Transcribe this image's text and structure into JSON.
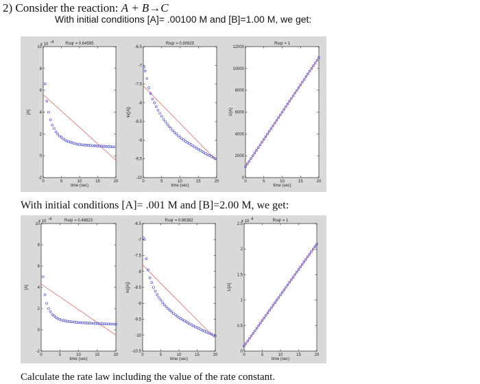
{
  "question": {
    "number": "2) Consider the reaction: ",
    "reaction": "A + B→C",
    "intro_1": "With initial conditions [A]= .00100 M and [B]=1.00 M, we get:",
    "intro_2": "With initial conditions [A]= .001 M and [B]=2.00 M, we get:",
    "closing": "Calculate the rate law including the value of the rate constant."
  },
  "colors": {
    "fit_line": "#e06a6a",
    "marker": "#3b3bd6",
    "panel_bg": "#d9d9d9",
    "plot_bg": "#ffffff"
  },
  "chart_data": [
    {
      "type": "scatter",
      "set": 1,
      "title": "Rsqr = 0.64595",
      "ylabel": "[A]",
      "xlabel": "time (sec)",
      "exponent": "x 10",
      "exponent_power": "-4",
      "xlim": [
        0,
        20
      ],
      "ylim": [
        -2,
        10
      ],
      "xticks": [
        0,
        5,
        10,
        15,
        20
      ],
      "yticks": [
        -2,
        0,
        2,
        4,
        6,
        8,
        10
      ],
      "xticklabels": [
        "0",
        "5",
        "10",
        "15",
        "20"
      ],
      "yticklabels": [
        "-2",
        "0",
        "2",
        "4",
        "6",
        "8",
        "10"
      ],
      "points": [
        [
          0.5,
          6.6
        ],
        [
          1,
          5.0
        ],
        [
          1.5,
          4.0
        ],
        [
          2,
          3.3
        ],
        [
          2.5,
          2.8
        ],
        [
          3,
          2.5
        ],
        [
          3.5,
          2.2
        ],
        [
          4,
          2.0
        ],
        [
          4.5,
          1.8
        ],
        [
          5,
          1.7
        ],
        [
          5.5,
          1.55
        ],
        [
          6,
          1.45
        ],
        [
          6.5,
          1.35
        ],
        [
          7,
          1.3
        ],
        [
          7.5,
          1.25
        ],
        [
          8,
          1.2
        ],
        [
          8.5,
          1.15
        ],
        [
          9,
          1.1
        ],
        [
          9.5,
          1.05
        ],
        [
          10,
          1.05
        ],
        [
          10.5,
          1.0
        ],
        [
          11,
          1.0
        ],
        [
          11.5,
          0.98
        ],
        [
          12,
          0.97
        ],
        [
          12.5,
          0.96
        ],
        [
          13,
          0.95
        ],
        [
          13.5,
          0.93
        ],
        [
          14,
          0.92
        ],
        [
          14.5,
          0.91
        ],
        [
          15,
          0.9
        ],
        [
          15.5,
          0.89
        ],
        [
          16,
          0.88
        ],
        [
          16.5,
          0.87
        ],
        [
          17,
          0.86
        ],
        [
          17.5,
          0.85
        ],
        [
          18,
          0.84
        ],
        [
          18.5,
          0.83
        ],
        [
          19,
          0.82
        ],
        [
          19.5,
          0.81
        ]
      ],
      "fit": [
        [
          0,
          5.6
        ],
        [
          20,
          -0.4
        ]
      ]
    },
    {
      "type": "scatter",
      "set": 1,
      "title": "Rsqr = 0.90925",
      "ylabel": "ln([A])",
      "xlabel": "time (sec)",
      "xlim": [
        0,
        20
      ],
      "ylim": [
        -10,
        -6.5
      ],
      "xticks": [
        0,
        5,
        10,
        15,
        20
      ],
      "yticks": [
        -10,
        -9.5,
        -9,
        -8.5,
        -8,
        -7.5,
        -7,
        -6.5
      ],
      "xticklabels": [
        "0",
        "5",
        "10",
        "15",
        "20"
      ],
      "yticklabels": [
        "-10",
        "-9.5",
        "-9",
        "-8.5",
        "-8",
        "-7.5",
        "-7",
        "-6.5"
      ],
      "points": [
        [
          0.2,
          -7.05
        ],
        [
          0.5,
          -7.15
        ],
        [
          1,
          -7.35
        ],
        [
          1.5,
          -7.6
        ],
        [
          2,
          -7.75
        ],
        [
          2.5,
          -7.9
        ],
        [
          3,
          -8.0
        ],
        [
          3.5,
          -8.1
        ],
        [
          4,
          -8.2
        ],
        [
          4.5,
          -8.28
        ],
        [
          5,
          -8.36
        ],
        [
          5.5,
          -8.44
        ],
        [
          6,
          -8.5
        ],
        [
          6.5,
          -8.57
        ],
        [
          7,
          -8.63
        ],
        [
          7.5,
          -8.68
        ],
        [
          8,
          -8.74
        ],
        [
          8.5,
          -8.79
        ],
        [
          9,
          -8.83
        ],
        [
          9.5,
          -8.88
        ],
        [
          10,
          -8.92
        ],
        [
          10.5,
          -8.96
        ],
        [
          11,
          -8.99
        ],
        [
          11.5,
          -9.03
        ],
        [
          12,
          -9.06
        ],
        [
          12.5,
          -9.09
        ],
        [
          13,
          -9.12
        ],
        [
          13.5,
          -9.15
        ],
        [
          14,
          -9.18
        ],
        [
          14.5,
          -9.21
        ],
        [
          15,
          -9.24
        ],
        [
          15.5,
          -9.27
        ],
        [
          16,
          -9.3
        ],
        [
          16.5,
          -9.33
        ],
        [
          17,
          -9.36
        ],
        [
          17.5,
          -9.39
        ],
        [
          18,
          -9.41
        ],
        [
          18.5,
          -9.43
        ],
        [
          19,
          -9.46
        ],
        [
          19.5,
          -9.49
        ]
      ],
      "fit": [
        [
          0,
          -7.55
        ],
        [
          20,
          -9.55
        ]
      ]
    },
    {
      "type": "scatter",
      "set": 1,
      "title": "Rsqr = 1",
      "ylabel": "1/[A]",
      "xlabel": "time (sec)",
      "xlim": [
        0,
        20
      ],
      "ylim": [
        0,
        12000
      ],
      "xticks": [
        0,
        5,
        10,
        15,
        20
      ],
      "yticks": [
        0,
        2000,
        4000,
        6000,
        8000,
        10000,
        12000
      ],
      "xticklabels": [
        "0",
        "5",
        "10",
        "15",
        "20"
      ],
      "yticklabels": [
        "0",
        "2000",
        "4000",
        "6000",
        "8000",
        "10000",
        "12000"
      ],
      "points": [
        [
          0,
          1000
        ],
        [
          0.5,
          1250
        ],
        [
          1,
          1500
        ],
        [
          1.5,
          1750
        ],
        [
          2,
          2000
        ],
        [
          2.5,
          2250
        ],
        [
          3,
          2500
        ],
        [
          3.5,
          2750
        ],
        [
          4,
          3000
        ],
        [
          4.5,
          3250
        ],
        [
          5,
          3500
        ],
        [
          5.5,
          3750
        ],
        [
          6,
          4000
        ],
        [
          6.5,
          4250
        ],
        [
          7,
          4500
        ],
        [
          7.5,
          4750
        ],
        [
          8,
          5000
        ],
        [
          8.5,
          5250
        ],
        [
          9,
          5500
        ],
        [
          9.5,
          5750
        ],
        [
          10,
          6000
        ],
        [
          10.5,
          6250
        ],
        [
          11,
          6500
        ],
        [
          11.5,
          6750
        ],
        [
          12,
          7000
        ],
        [
          12.5,
          7250
        ],
        [
          13,
          7500
        ],
        [
          13.5,
          7750
        ],
        [
          14,
          8000
        ],
        [
          14.5,
          8250
        ],
        [
          15,
          8500
        ],
        [
          15.5,
          8750
        ],
        [
          16,
          9000
        ],
        [
          16.5,
          9250
        ],
        [
          17,
          9500
        ],
        [
          17.5,
          9750
        ],
        [
          18,
          10000
        ],
        [
          18.5,
          10250
        ],
        [
          19,
          10500
        ],
        [
          19.5,
          10750
        ],
        [
          20,
          11000
        ]
      ],
      "fit": [
        [
          0,
          1000
        ],
        [
          20,
          11000
        ]
      ]
    },
    {
      "type": "scatter",
      "set": 2,
      "title": "Rsqr = 0.48823",
      "ylabel": "[A]",
      "xlabel": "time (sec)",
      "exponent": "x 10",
      "exponent_power": "-4",
      "xlim": [
        0,
        20
      ],
      "ylim": [
        -2,
        10
      ],
      "xticks": [
        0,
        5,
        10,
        15,
        20
      ],
      "yticks": [
        -2,
        0,
        2,
        4,
        6,
        8,
        10
      ],
      "xticklabels": [
        "0",
        "5",
        "10",
        "15",
        "20"
      ],
      "yticklabels": [
        "-2",
        "0",
        "2",
        "4",
        "6",
        "8",
        "10"
      ],
      "points": [
        [
          0.5,
          5.0
        ],
        [
          1,
          3.3
        ],
        [
          1.5,
          2.5
        ],
        [
          2,
          2.0
        ],
        [
          2.5,
          1.7
        ],
        [
          3,
          1.45
        ],
        [
          3.5,
          1.3
        ],
        [
          4,
          1.15
        ],
        [
          4.5,
          1.05
        ],
        [
          5,
          0.98
        ],
        [
          5.5,
          0.92
        ],
        [
          6,
          0.88
        ],
        [
          6.5,
          0.84
        ],
        [
          7,
          0.8
        ],
        [
          7.5,
          0.78
        ],
        [
          8,
          0.76
        ],
        [
          8.5,
          0.74
        ],
        [
          9,
          0.72
        ],
        [
          9.5,
          0.7
        ],
        [
          10,
          0.69
        ],
        [
          10.5,
          0.68
        ],
        [
          11,
          0.67
        ],
        [
          11.5,
          0.66
        ],
        [
          12,
          0.65
        ],
        [
          12.5,
          0.64
        ],
        [
          13,
          0.63
        ],
        [
          13.5,
          0.62
        ],
        [
          14,
          0.61
        ],
        [
          14.5,
          0.6
        ],
        [
          15,
          0.6
        ],
        [
          15.5,
          0.59
        ],
        [
          16,
          0.58
        ],
        [
          16.5,
          0.57
        ],
        [
          17,
          0.57
        ],
        [
          17.5,
          0.56
        ],
        [
          18,
          0.55
        ],
        [
          18.5,
          0.55
        ],
        [
          19,
          0.54
        ],
        [
          19.5,
          0.54
        ],
        [
          20,
          0.53
        ]
      ],
      "fit": [
        [
          0,
          4.3
        ],
        [
          20,
          -0.5
        ]
      ]
    },
    {
      "type": "scatter",
      "set": 2,
      "title": "Rsqr = 0.86382",
      "ylabel": "ln([A])",
      "xlabel": "time (sec)",
      "xlim": [
        0,
        20
      ],
      "ylim": [
        -10.5,
        -6.5
      ],
      "xticks": [
        0,
        5,
        10,
        15,
        20
      ],
      "yticks": [
        -10.5,
        -10,
        -9.5,
        -9,
        -8.5,
        -8,
        -7.5,
        -7,
        -6.5
      ],
      "xticklabels": [
        "0",
        "5",
        "10",
        "15",
        "20"
      ],
      "yticklabels": [
        "-10.5",
        "-10",
        "-9.5",
        "-9",
        "-8.5",
        "-8",
        "-7.5",
        "-7",
        "-6.5"
      ],
      "points": [
        [
          0.2,
          -6.95
        ],
        [
          0.5,
          -7.0
        ],
        [
          1,
          -7.6
        ],
        [
          1.5,
          -7.95
        ],
        [
          2,
          -8.2
        ],
        [
          2.5,
          -8.35
        ],
        [
          3,
          -8.5
        ],
        [
          3.5,
          -8.62
        ],
        [
          4,
          -8.73
        ],
        [
          4.5,
          -8.82
        ],
        [
          5,
          -8.9
        ],
        [
          5.5,
          -8.98
        ],
        [
          6,
          -9.05
        ],
        [
          6.5,
          -9.11
        ],
        [
          7,
          -9.17
        ],
        [
          7.5,
          -9.22
        ],
        [
          8,
          -9.27
        ],
        [
          8.5,
          -9.32
        ],
        [
          9,
          -9.36
        ],
        [
          9.5,
          -9.41
        ],
        [
          10,
          -9.45
        ],
        [
          10.5,
          -9.48
        ],
        [
          11,
          -9.52
        ],
        [
          11.5,
          -9.55
        ],
        [
          12,
          -9.58
        ],
        [
          12.5,
          -9.62
        ],
        [
          13,
          -9.65
        ],
        [
          13.5,
          -9.68
        ],
        [
          14,
          -9.71
        ],
        [
          14.5,
          -9.74
        ],
        [
          15,
          -9.77
        ],
        [
          15.5,
          -9.79
        ],
        [
          16,
          -9.82
        ],
        [
          16.5,
          -9.85
        ],
        [
          17,
          -9.87
        ],
        [
          17.5,
          -9.9
        ],
        [
          18,
          -9.93
        ],
        [
          18.5,
          -9.95
        ],
        [
          19,
          -9.97
        ],
        [
          19.5,
          -10.0
        ],
        [
          20,
          -10.02
        ]
      ],
      "fit": [
        [
          0,
          -7.8
        ],
        [
          20,
          -10.1
        ]
      ]
    },
    {
      "type": "scatter",
      "set": 2,
      "title": "Rsqr = 1",
      "ylabel": "1/[A]",
      "xlabel": "time (sec)",
      "exponent": "x 10",
      "exponent_power": "4",
      "xlim": [
        0,
        20
      ],
      "ylim": [
        0,
        2.5
      ],
      "xticks": [
        0,
        5,
        10,
        15,
        20
      ],
      "yticks": [
        0,
        0.5,
        1,
        1.5,
        2,
        2.5
      ],
      "xticklabels": [
        "0",
        "5",
        "10",
        "15",
        "20"
      ],
      "yticklabels": [
        "0",
        "0.5",
        "1",
        "1.5",
        "2",
        "2.5"
      ],
      "points": [
        [
          0,
          0.1
        ],
        [
          0.5,
          0.15
        ],
        [
          1,
          0.2
        ],
        [
          1.5,
          0.25
        ],
        [
          2,
          0.3
        ],
        [
          2.5,
          0.35
        ],
        [
          3,
          0.4
        ],
        [
          3.5,
          0.45
        ],
        [
          4,
          0.5
        ],
        [
          4.5,
          0.55
        ],
        [
          5,
          0.6
        ],
        [
          5.5,
          0.65
        ],
        [
          6,
          0.7
        ],
        [
          6.5,
          0.75
        ],
        [
          7,
          0.8
        ],
        [
          7.5,
          0.85
        ],
        [
          8,
          0.9
        ],
        [
          8.5,
          0.95
        ],
        [
          9,
          1.0
        ],
        [
          9.5,
          1.05
        ],
        [
          10,
          1.1
        ],
        [
          10.5,
          1.15
        ],
        [
          11,
          1.2
        ],
        [
          11.5,
          1.25
        ],
        [
          12,
          1.3
        ],
        [
          12.5,
          1.35
        ],
        [
          13,
          1.4
        ],
        [
          13.5,
          1.45
        ],
        [
          14,
          1.5
        ],
        [
          14.5,
          1.55
        ],
        [
          15,
          1.6
        ],
        [
          15.5,
          1.65
        ],
        [
          16,
          1.7
        ],
        [
          16.5,
          1.75
        ],
        [
          17,
          1.8
        ],
        [
          17.5,
          1.85
        ],
        [
          18,
          1.9
        ],
        [
          18.5,
          1.95
        ],
        [
          19,
          2.0
        ],
        [
          19.5,
          2.05
        ],
        [
          20,
          2.1
        ]
      ],
      "fit": [
        [
          0,
          0.1
        ],
        [
          20,
          2.1
        ]
      ]
    }
  ]
}
